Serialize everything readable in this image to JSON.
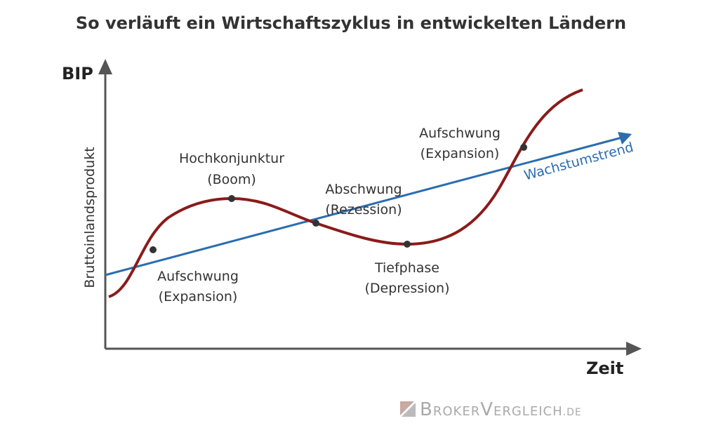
{
  "header": {
    "title": "So verläuft ein Wirtschaftszyklus in entwickelten Ländern"
  },
  "axes": {
    "y_label": "BIP",
    "y_title": "Bruttoinlandsprodukt",
    "x_label": "Zeit"
  },
  "trend": {
    "label": "Wachstumstrend"
  },
  "phases": [
    {
      "label": "Aufschwung",
      "sub": "(Expansion)"
    },
    {
      "label": "Hochkonjunktur",
      "sub": "(Boom)"
    },
    {
      "label": "Abschwung",
      "sub": "(Rezession)"
    },
    {
      "label": "Tiefphase",
      "sub": "(Depression)"
    },
    {
      "label": "Aufschwung",
      "sub": "(Expansion)"
    }
  ],
  "footer": {
    "brand": "BrokerVergleich",
    "suffix": ".de"
  }
}
